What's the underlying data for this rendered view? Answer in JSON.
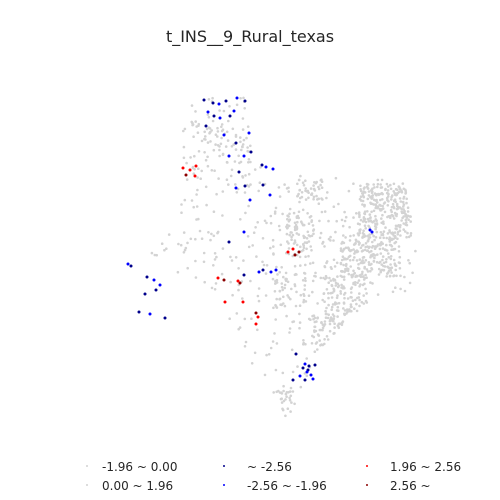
{
  "title": "t_INS__9_Rural_texas",
  "colors": {
    "neutral": "#d3d3d3",
    "low_extreme": "#00008b",
    "low": "#0000ff",
    "high": "#ff0000",
    "high_extreme": "#8b0000"
  },
  "legend": [
    {
      "key": "neg_ns",
      "label": "-1.96 ~ 0.00",
      "color": "#d3d3d3"
    },
    {
      "key": "pos_ns",
      "label": "0.00 ~ 1.96",
      "color": "#d3d3d3"
    },
    {
      "key": "low_extreme",
      "label": "~ -2.56",
      "color": "#00008b"
    },
    {
      "key": "low",
      "label": "-2.56 ~ -1.96",
      "color": "#0000ff"
    },
    {
      "key": "high",
      "label": "1.96 ~ 2.56",
      "color": "#ff0000"
    },
    {
      "key": "high_extreme",
      "label": "2.56 ~",
      "color": "#8b0000"
    }
  ]
}
